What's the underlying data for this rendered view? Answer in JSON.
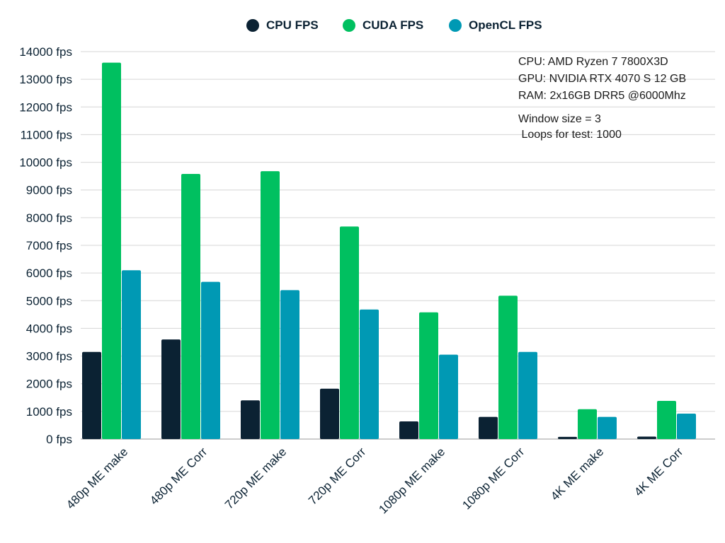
{
  "chart_data": {
    "type": "bar",
    "categories": [
      "480p ME make",
      "480p ME Corr",
      "720p ME make",
      "720p ME Corr",
      "1080p ME make",
      "1080p ME Corr",
      "4K ME make",
      "4K ME Corr"
    ],
    "series": [
      {
        "name": "CPU FPS",
        "color": "#0b2233",
        "values": [
          3150,
          3600,
          1400,
          1820,
          640,
          800,
          80,
          90
        ]
      },
      {
        "name": "CUDA FPS",
        "color": "#00c060",
        "values": [
          13600,
          9580,
          9680,
          7680,
          4580,
          5180,
          1080,
          1380
        ]
      },
      {
        "name": "OpenCL FPS",
        "color": "#0099b4",
        "values": [
          6100,
          5680,
          5380,
          4680,
          3050,
          3150,
          800,
          920
        ]
      }
    ],
    "ylim": [
      0,
      14000
    ],
    "yticks": [
      0,
      1000,
      2000,
      3000,
      4000,
      5000,
      6000,
      7000,
      8000,
      9000,
      10000,
      11000,
      12000,
      13000,
      14000
    ],
    "ytick_suffix": " fps",
    "grid": true,
    "legend_position": "top-center",
    "title": "",
    "xlabel": "",
    "ylabel": ""
  },
  "info": {
    "cpu": "CPU: AMD Ryzen 7 7800X3D",
    "gpu": "GPU: NVIDIA RTX 4070 S 12 GB",
    "ram": "RAM: 2x16GB DRR5 @6000Mhz",
    "window": "Window size = 3",
    "loops": " Loops for test: 1000"
  }
}
